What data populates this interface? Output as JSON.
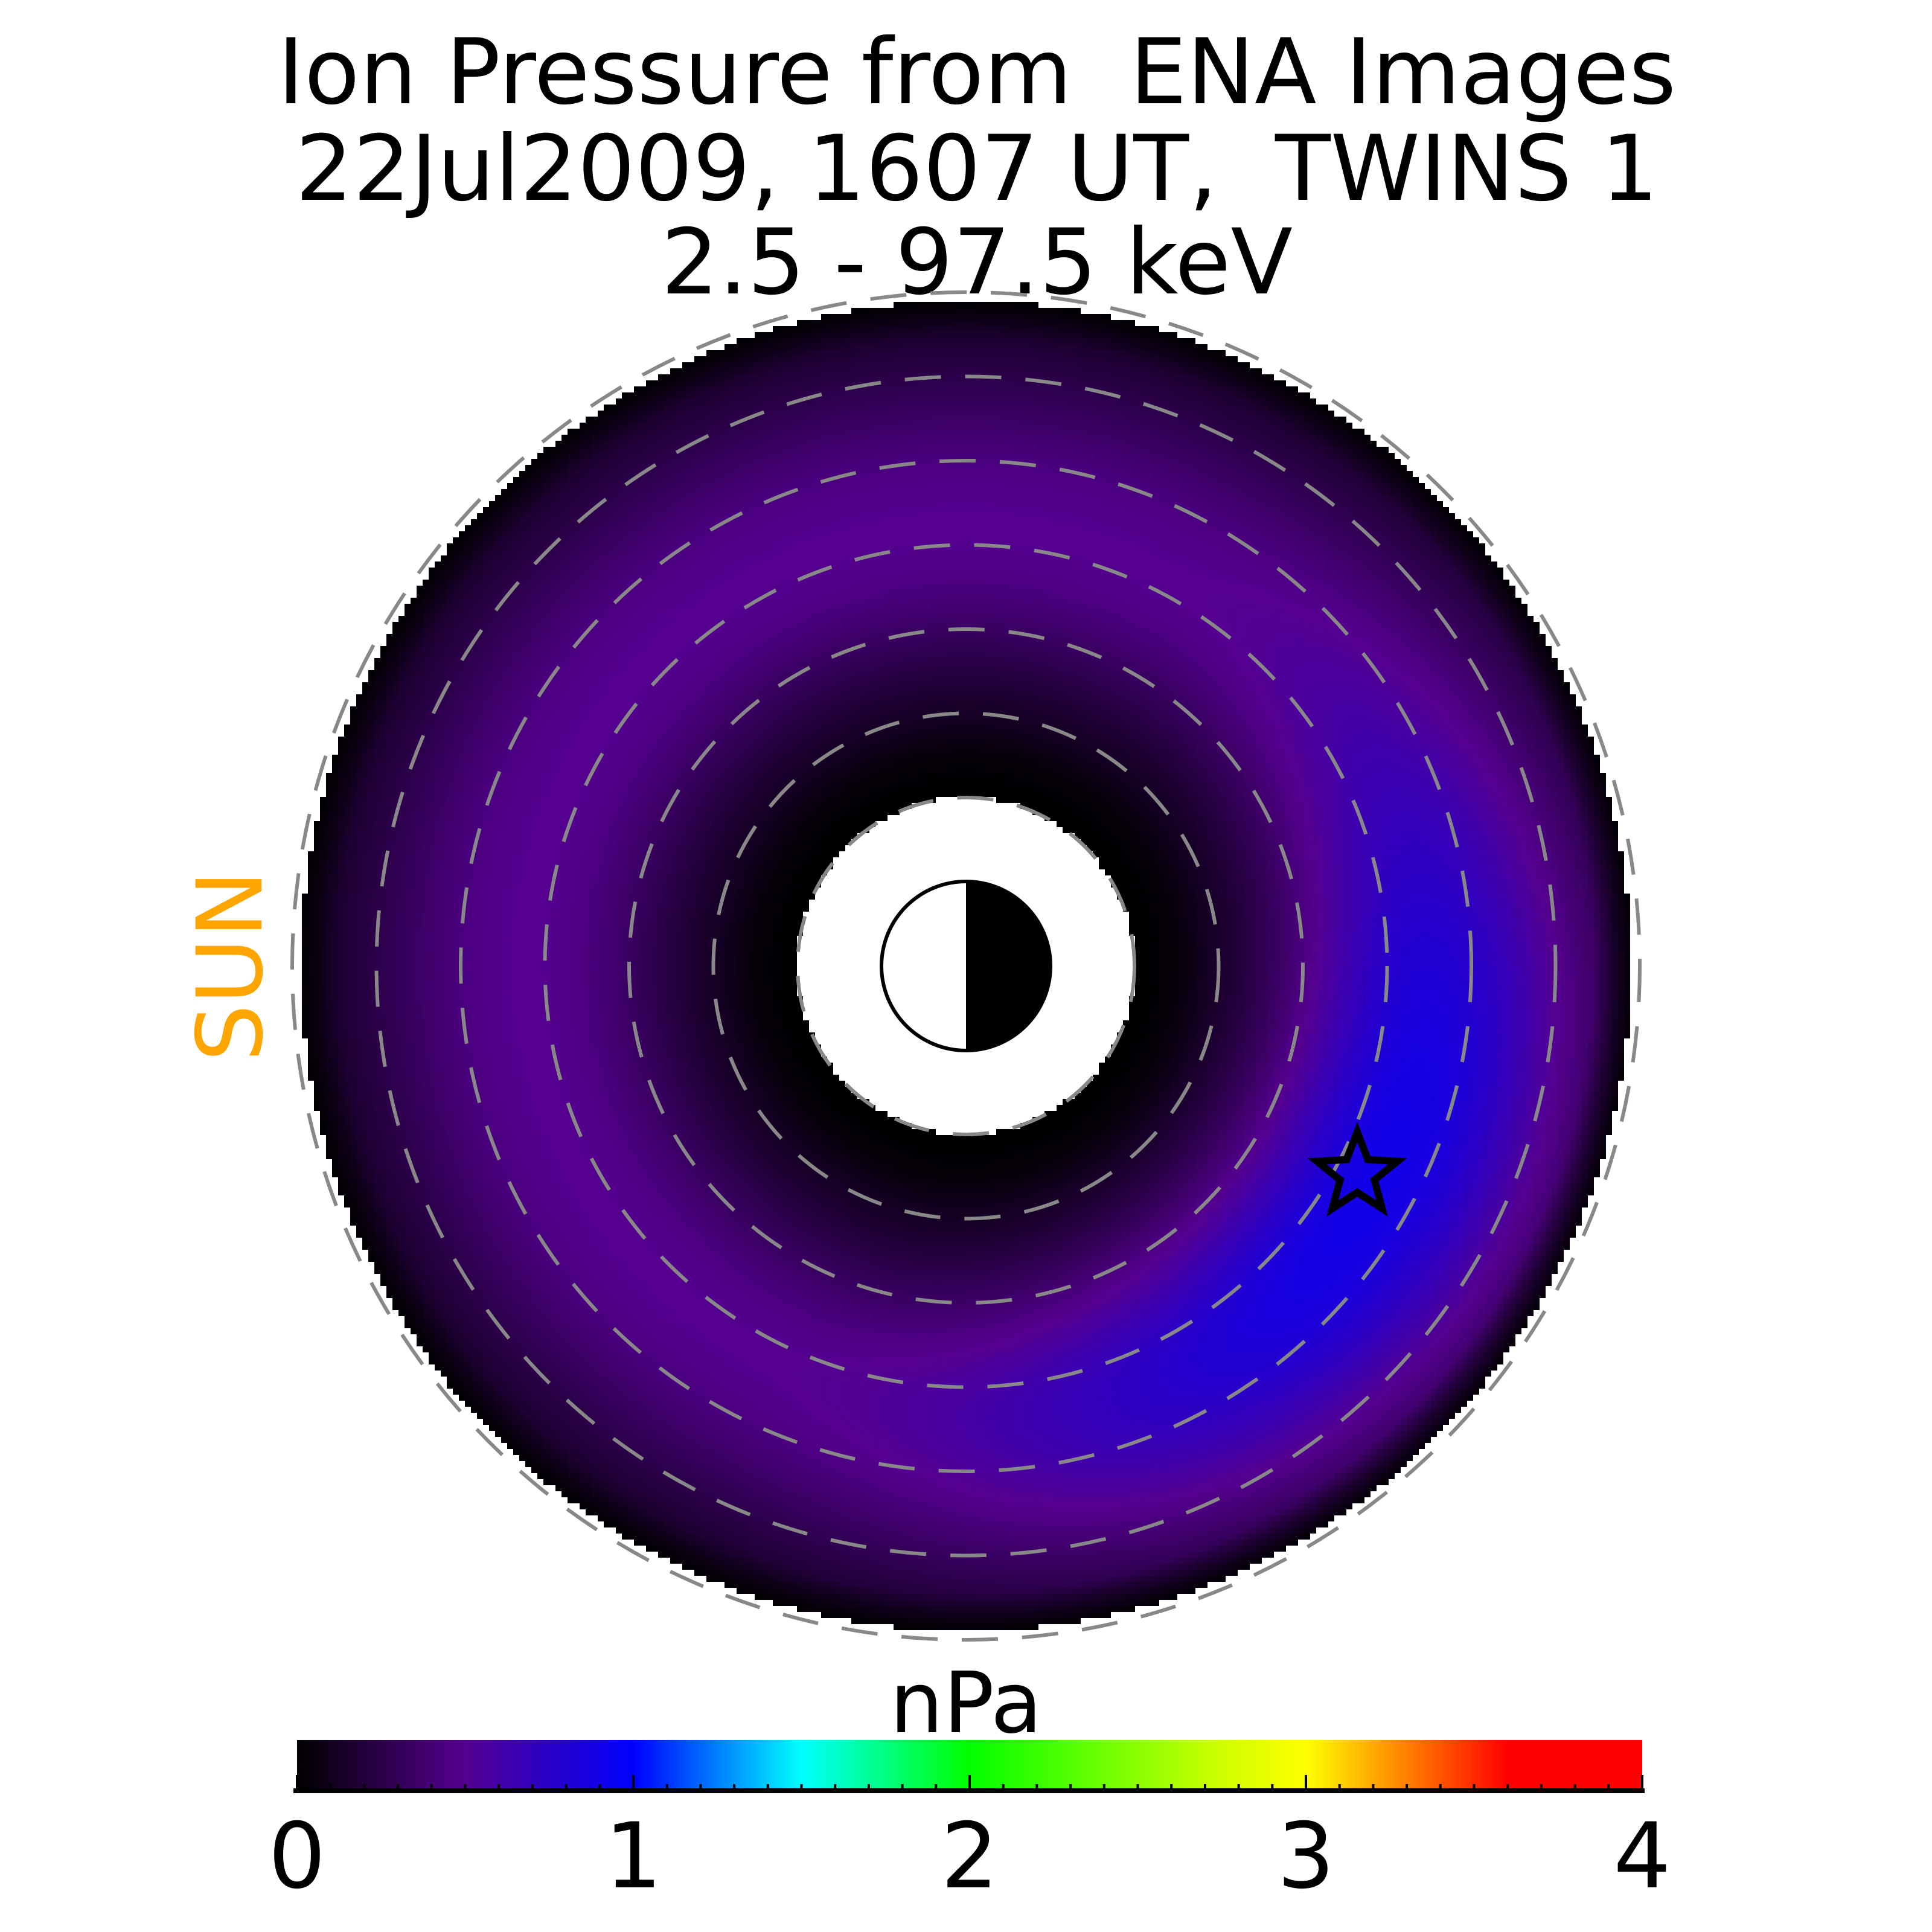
{
  "chart_data": {
    "type": "heatmap",
    "title": [
      "Ion Pressure from  ENA Images",
      "22Jul2009, 1607 UT,  TWINS 1",
      "2.5 - 97.5 keV"
    ],
    "projection": "polar equatorial map, Sun to the left",
    "sun_label": "SUN",
    "colorbar": {
      "label": "nPa",
      "range": [
        0,
        4
      ],
      "ticks": [
        "0",
        "1",
        "2",
        "3",
        "4"
      ],
      "minor_tick_step": 0.1,
      "colormap": [
        "#000000",
        "#550090",
        "#0000ff",
        "#00ffff",
        "#00ff00",
        "#c8ff00",
        "#ffff00",
        "#ff0000"
      ]
    },
    "radial_grid_RE": [
      2,
      3,
      4,
      5,
      6,
      7,
      8
    ],
    "data_extent_RE": [
      2,
      7.9
    ],
    "field": {
      "typical_value_nPa": 0.5,
      "max_value_nPa": 0.9,
      "max_location": "dawn side, post-midnight, about 5 RE"
    },
    "marker": {
      "symbol": "star",
      "meaning": "spacecraft position"
    },
    "earth": {
      "day_side": "left (white)",
      "night_side": "right (black)"
    },
    "colors": {
      "sun_label": "#FFA500",
      "grid": "#888888"
    }
  }
}
